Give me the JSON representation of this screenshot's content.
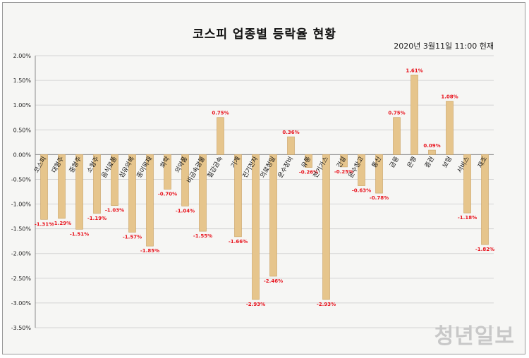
{
  "chart_data": {
    "type": "bar",
    "title": "코스피 업종별 등락율 현황",
    "subtitle": "2020년 3월11일   11:00  현재",
    "categories": [
      "코스피",
      "대형주",
      "중형주",
      "소형주",
      "음식료품",
      "섬유의복",
      "종이목재",
      "화학",
      "의약품",
      "비금속광물",
      "철강금속",
      "기계",
      "전기전자",
      "의료정밀",
      "운수장비",
      "유통",
      "전기가스",
      "건설",
      "운수창고",
      "통신",
      "금융",
      "은행",
      "증권",
      "보험",
      "서비스",
      "제조"
    ],
    "values": [
      -1.31,
      -1.29,
      -1.51,
      -1.19,
      -1.03,
      -1.57,
      -1.85,
      -0.7,
      -1.04,
      -1.55,
      0.75,
      -1.66,
      -2.93,
      -2.46,
      0.36,
      -0.26,
      -2.93,
      -0.25,
      -0.63,
      -0.78,
      0.75,
      1.61,
      0.09,
      1.08,
      -1.18,
      -1.82
    ],
    "value_labels": [
      "-1.31%",
      "-1.29%",
      "-1.51%",
      "-1.19%",
      "-1.03%",
      "-1.57%",
      "-1.85%",
      "-0.70%",
      "-1.04%",
      "-1.55%",
      "0.75%",
      "-1.66%",
      "-2.93%",
      "-2.46%",
      "0.36%",
      "-0.26%",
      "-2.93%",
      "-0.25%",
      "-0.63%",
      "-0.78%",
      "0.75%",
      "1.61%",
      "0.09%",
      "1.08%",
      "-1.18%",
      "-1.82%"
    ],
    "ylim": [
      -3.5,
      2.0
    ],
    "yticks": [
      2.0,
      1.5,
      1.0,
      0.5,
      0.0,
      -0.5,
      -1.0,
      -1.5,
      -2.0,
      -2.5,
      -3.0,
      -3.5
    ],
    "ytick_labels": [
      "2.00%",
      "1.50%",
      "1.00%",
      "0.50%",
      "0.00%",
      "-0.50%",
      "-1.00%",
      "-1.50%",
      "-2.00%",
      "-2.50%",
      "-3.00%",
      "-3.50%"
    ],
    "grid": true,
    "bar_color": "#e6c58c",
    "bar_edge_color": "#c9a060",
    "label_color": "#e8141e"
  },
  "watermark": "청년일보"
}
